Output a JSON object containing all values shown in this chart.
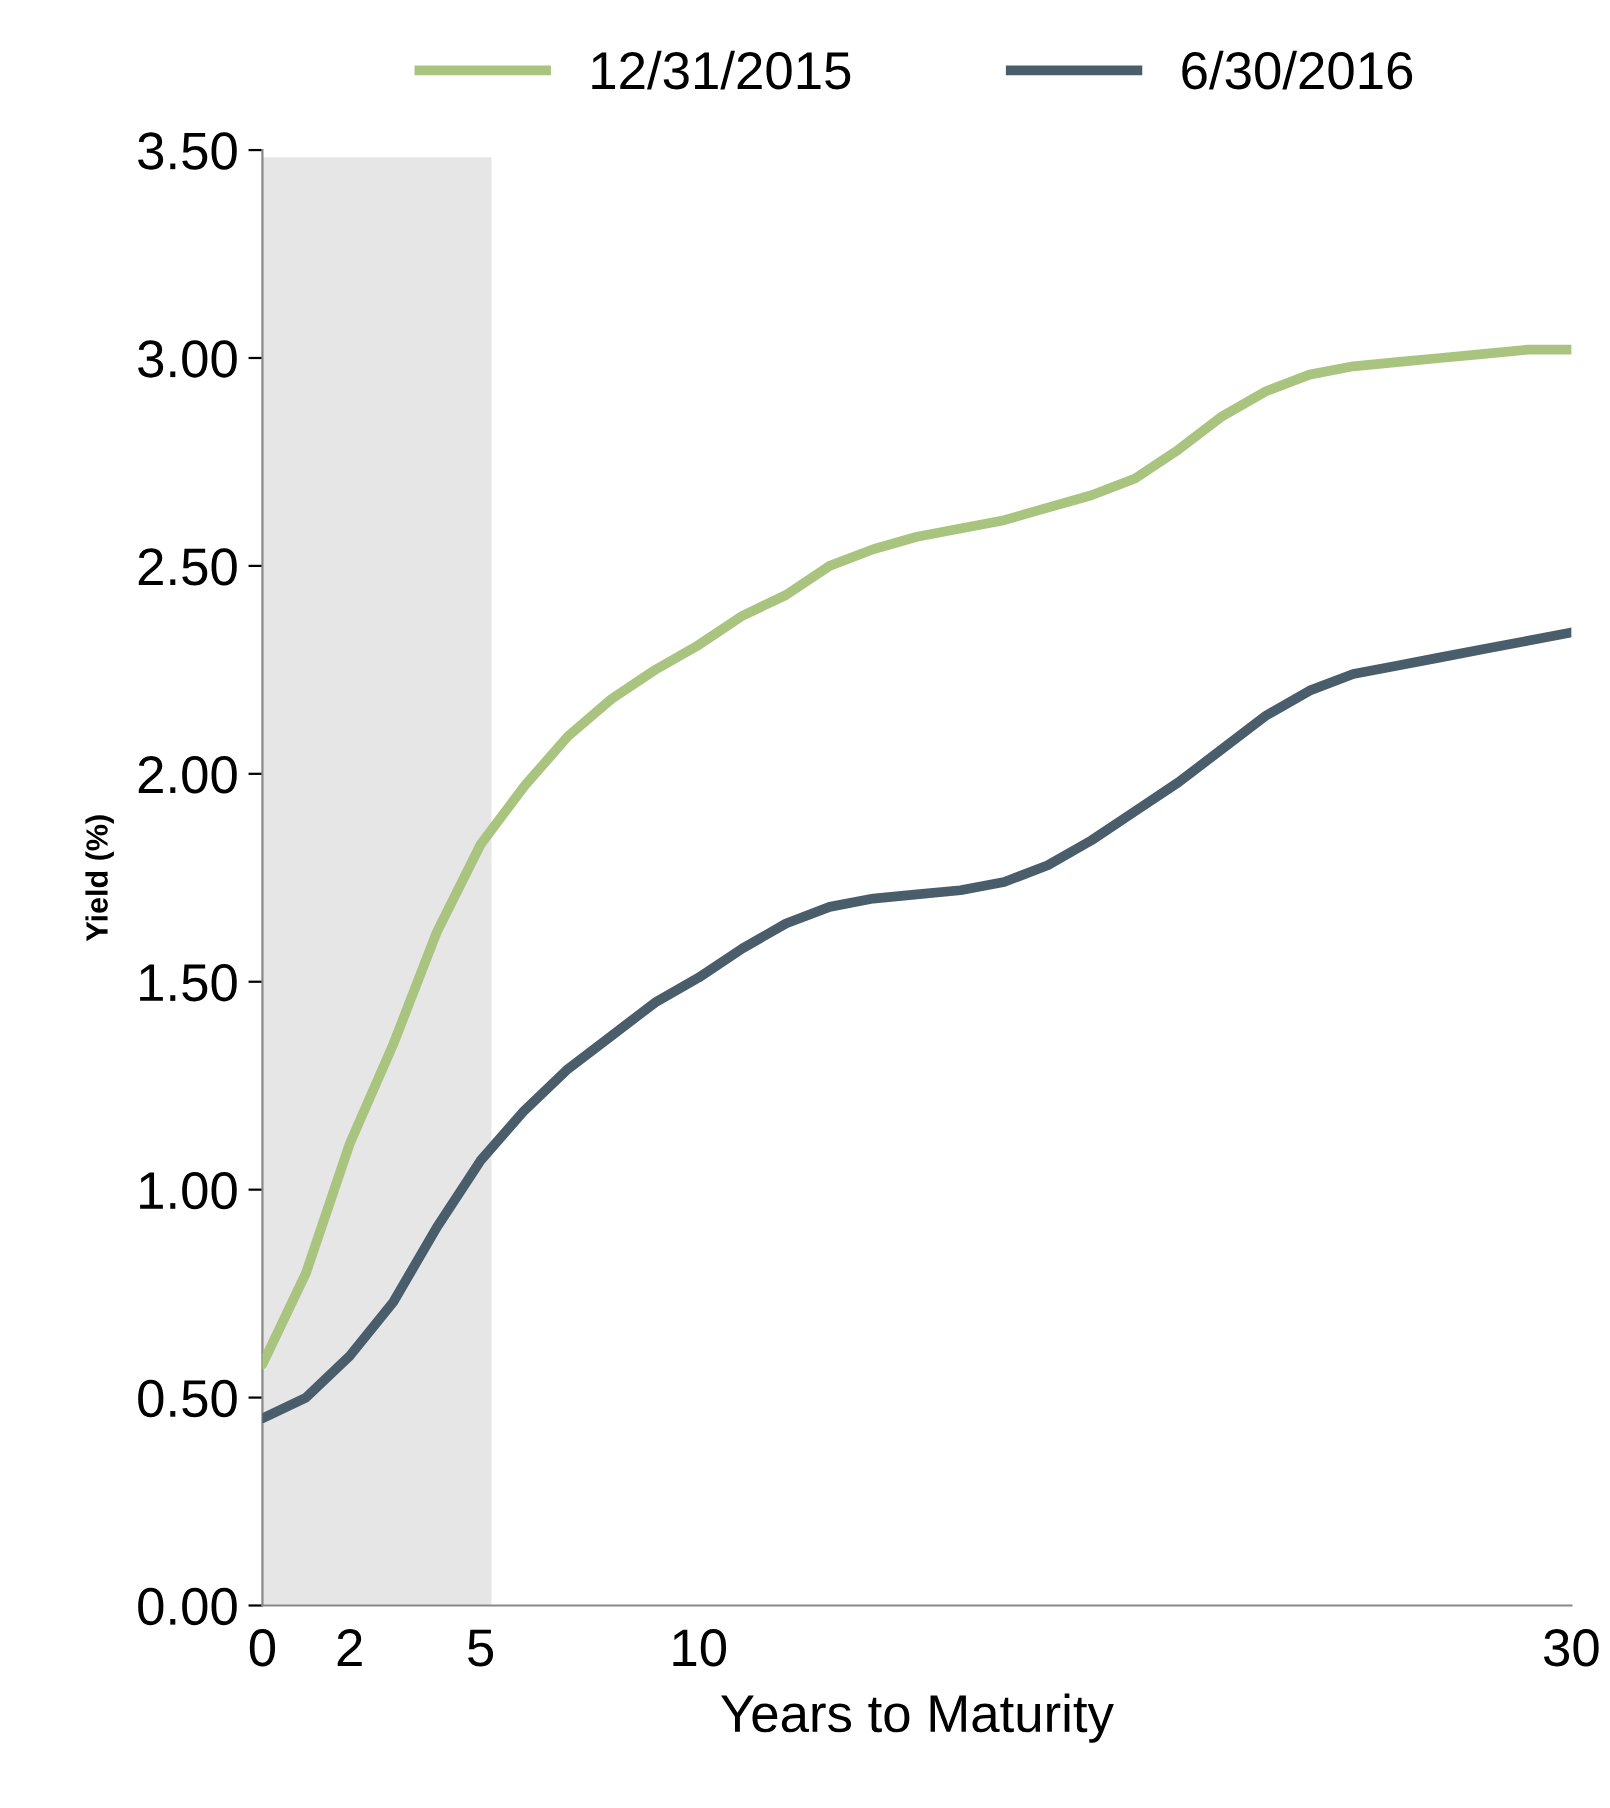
{
  "chart_data": {
    "type": "line",
    "xlabel": "Years to Maturity",
    "ylabel": "Yield (%)",
    "x": [
      0,
      1,
      2,
      3,
      4,
      5,
      6,
      7,
      8,
      9,
      10,
      11,
      12,
      13,
      14,
      15,
      16,
      17,
      18,
      19,
      20,
      21,
      22,
      23,
      24,
      25,
      26,
      27,
      28,
      29,
      30
    ],
    "series": [
      {
        "name": "12/31/2015",
        "color": "#a9c47f",
        "values": [
          0.58,
          0.8,
          1.11,
          1.35,
          1.62,
          1.83,
          1.97,
          2.09,
          2.18,
          2.25,
          2.31,
          2.38,
          2.43,
          2.5,
          2.54,
          2.57,
          2.59,
          2.61,
          2.64,
          2.67,
          2.71,
          2.78,
          2.86,
          2.92,
          2.96,
          2.98,
          2.99,
          3.0,
          3.01,
          3.02,
          3.02
        ]
      },
      {
        "name": "6/30/2016",
        "color": "#4a5d6b",
        "values": [
          0.45,
          0.5,
          0.6,
          0.73,
          0.91,
          1.07,
          1.19,
          1.29,
          1.37,
          1.45,
          1.51,
          1.58,
          1.64,
          1.68,
          1.7,
          1.71,
          1.72,
          1.74,
          1.78,
          1.84,
          1.91,
          1.98,
          2.06,
          2.14,
          2.2,
          2.24,
          2.26,
          2.28,
          2.3,
          2.32,
          2.34
        ]
      }
    ],
    "xlim": [
      0,
      30
    ],
    "xticks": [
      0,
      2,
      5,
      10,
      30
    ],
    "ylim": [
      0,
      3.5
    ],
    "yticks": [
      {
        "value": 0,
        "label": "0.00"
      },
      {
        "value": 0.5,
        "label": "0.50"
      },
      {
        "value": 1,
        "label": "1.00"
      },
      {
        "value": 1.5,
        "label": "1.50"
      },
      {
        "value": 2,
        "label": "2.00"
      },
      {
        "value": 2.5,
        "label": "2.50"
      },
      {
        "value": 3,
        "label": "3.00"
      },
      {
        "value": 3.5,
        "label": "3.50"
      }
    ],
    "bands": [
      {
        "axis": "x",
        "from": 0,
        "to": 5.25,
        "color": "#e6e6e6"
      }
    ],
    "legend": "top",
    "grid": false,
    "marker": "none",
    "line_style": "solid"
  }
}
